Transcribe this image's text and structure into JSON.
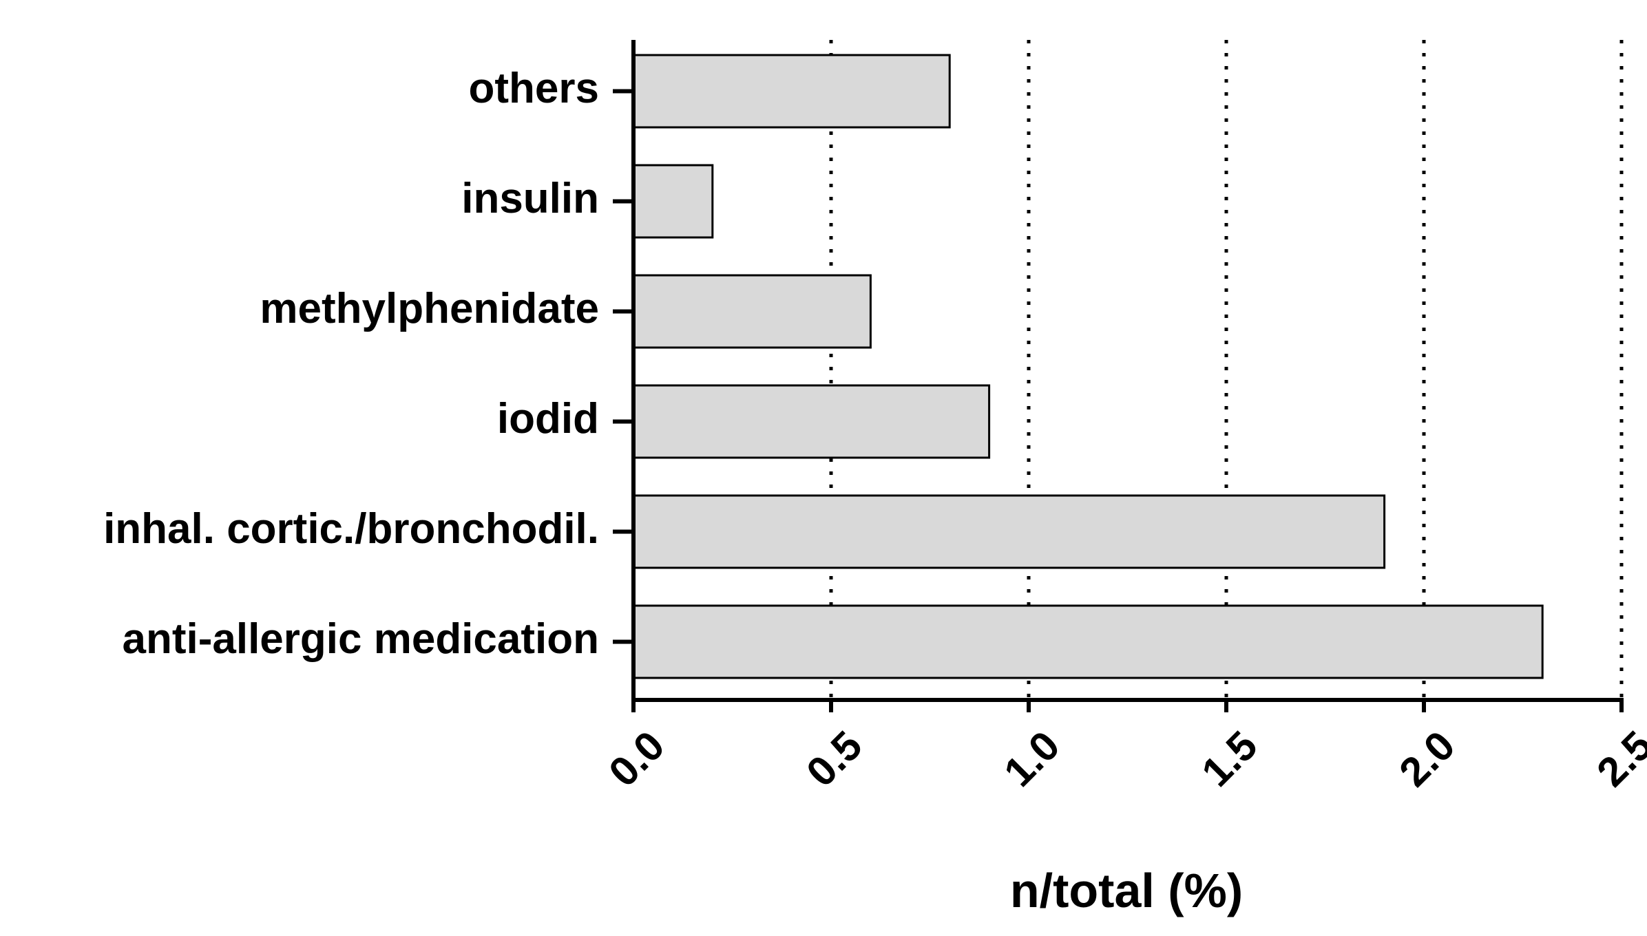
{
  "chart_data": {
    "type": "bar",
    "orientation": "horizontal",
    "categories": [
      "others",
      "insulin",
      "methylphenidate",
      "iodid",
      "inhal. cortic./bronchodil.",
      "anti-allergic medication"
    ],
    "values": [
      0.8,
      0.2,
      0.6,
      0.9,
      1.9,
      2.3
    ],
    "color": "#d9d9d9",
    "xlabel": "n/total (%)",
    "xlim": [
      0,
      2.5
    ],
    "xticks": [
      {
        "value": 0,
        "label": "0.0"
      },
      0.5,
      {
        "value": 1,
        "label": "1.0"
      },
      1.5,
      {
        "value": 2,
        "label": "2.0"
      },
      2.5
    ],
    "grid": true
  }
}
